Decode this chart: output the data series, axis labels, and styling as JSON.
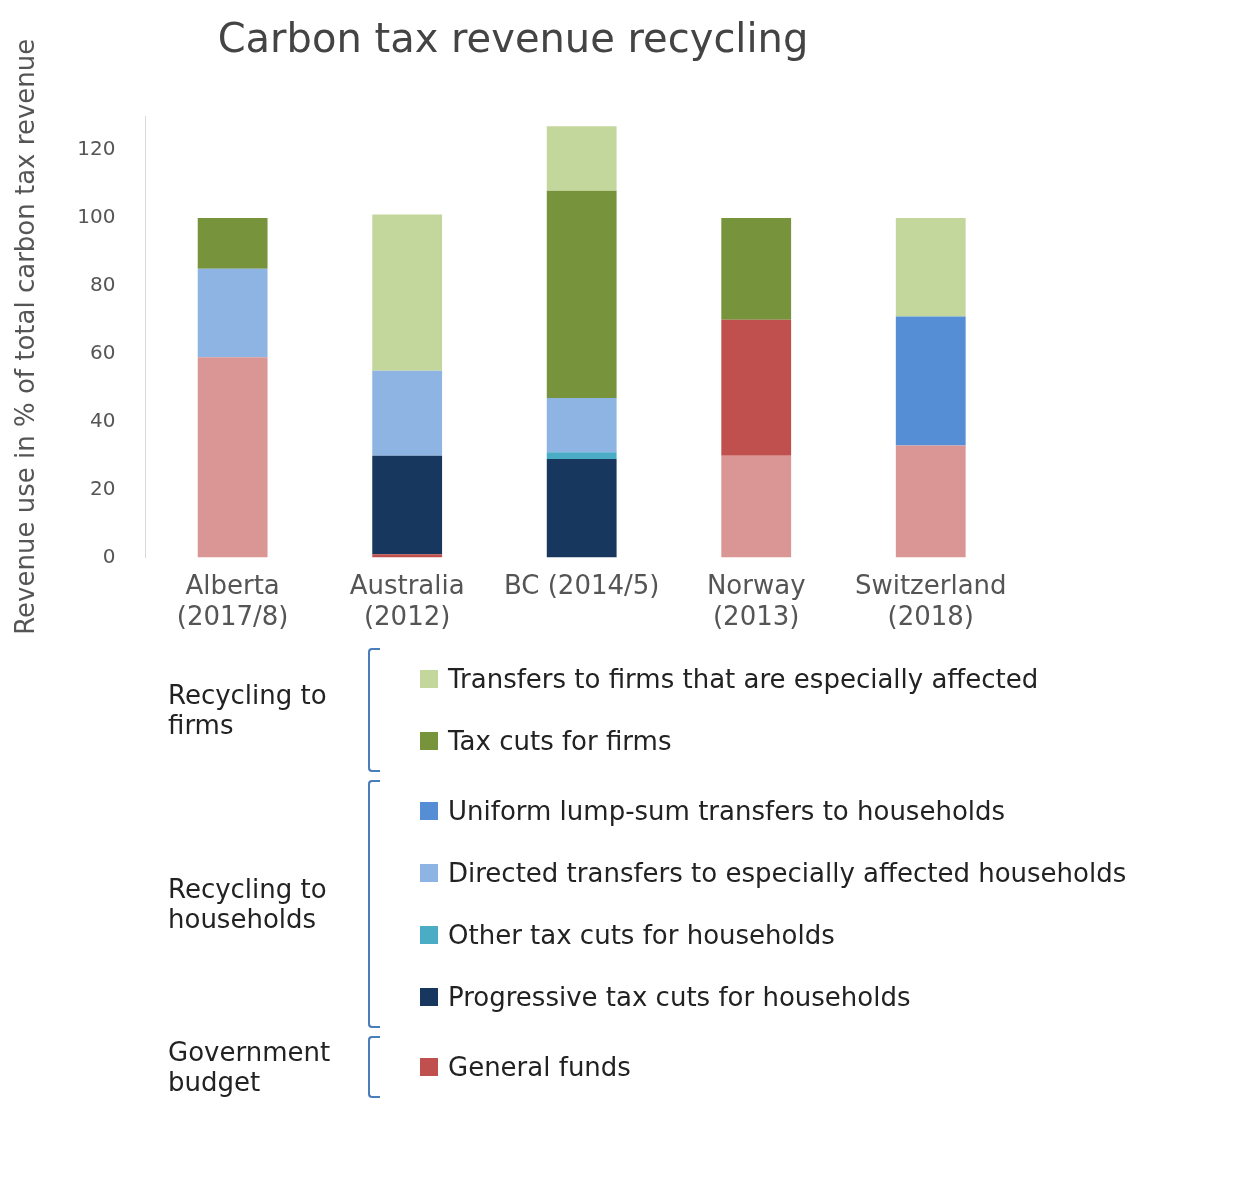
{
  "chart_data": {
    "type": "bar",
    "title": "Carbon tax revenue recycling",
    "ylabel": "Revenue use in % of total carbon tax revenue",
    "categories": [
      "Alberta (2017/8)",
      "Australia (2012)",
      "BC (2014/5)",
      "Norway (2013)",
      "Switzerland (2018)"
    ],
    "stacked": true,
    "ylim": [
      0,
      130
    ],
    "yticks": [
      0,
      20,
      40,
      60,
      80,
      100,
      120
    ],
    "grid": false,
    "legend": "bottom",
    "annotations": [
      "Recycling to firms",
      "Recycling to households",
      "Government budget"
    ],
    "series": [
      {
        "color": "#da9694",
        "values": [
          59,
          0,
          0,
          30,
          33
        ]
      },
      {
        "name": "General funds",
        "color": "#c0504d",
        "values": [
          0,
          1,
          0,
          40,
          0
        ]
      },
      {
        "name": "Progressive tax cuts for households",
        "color": "#17375e",
        "values": [
          0,
          29,
          29,
          0,
          0
        ]
      },
      {
        "name": "Other tax cuts for households",
        "color": "#4bacc6",
        "values": [
          0,
          0,
          2,
          0,
          0
        ]
      },
      {
        "name": "Directed transfers to especially affected households",
        "color": "#8eb4e3",
        "values": [
          26,
          25,
          16,
          0,
          0
        ]
      },
      {
        "name": "Uniform lump-sum transfers to households",
        "color": "#558ed5",
        "values": [
          0,
          0,
          0,
          0,
          38
        ]
      },
      {
        "name": "Tax cuts for firms",
        "color": "#77933c",
        "values": [
          15,
          0,
          61,
          30,
          0
        ]
      },
      {
        "name": "Transfers to firms that are especially affected",
        "color": "#c3d69b",
        "values": [
          0,
          46,
          19,
          0,
          29
        ]
      }
    ]
  }
}
